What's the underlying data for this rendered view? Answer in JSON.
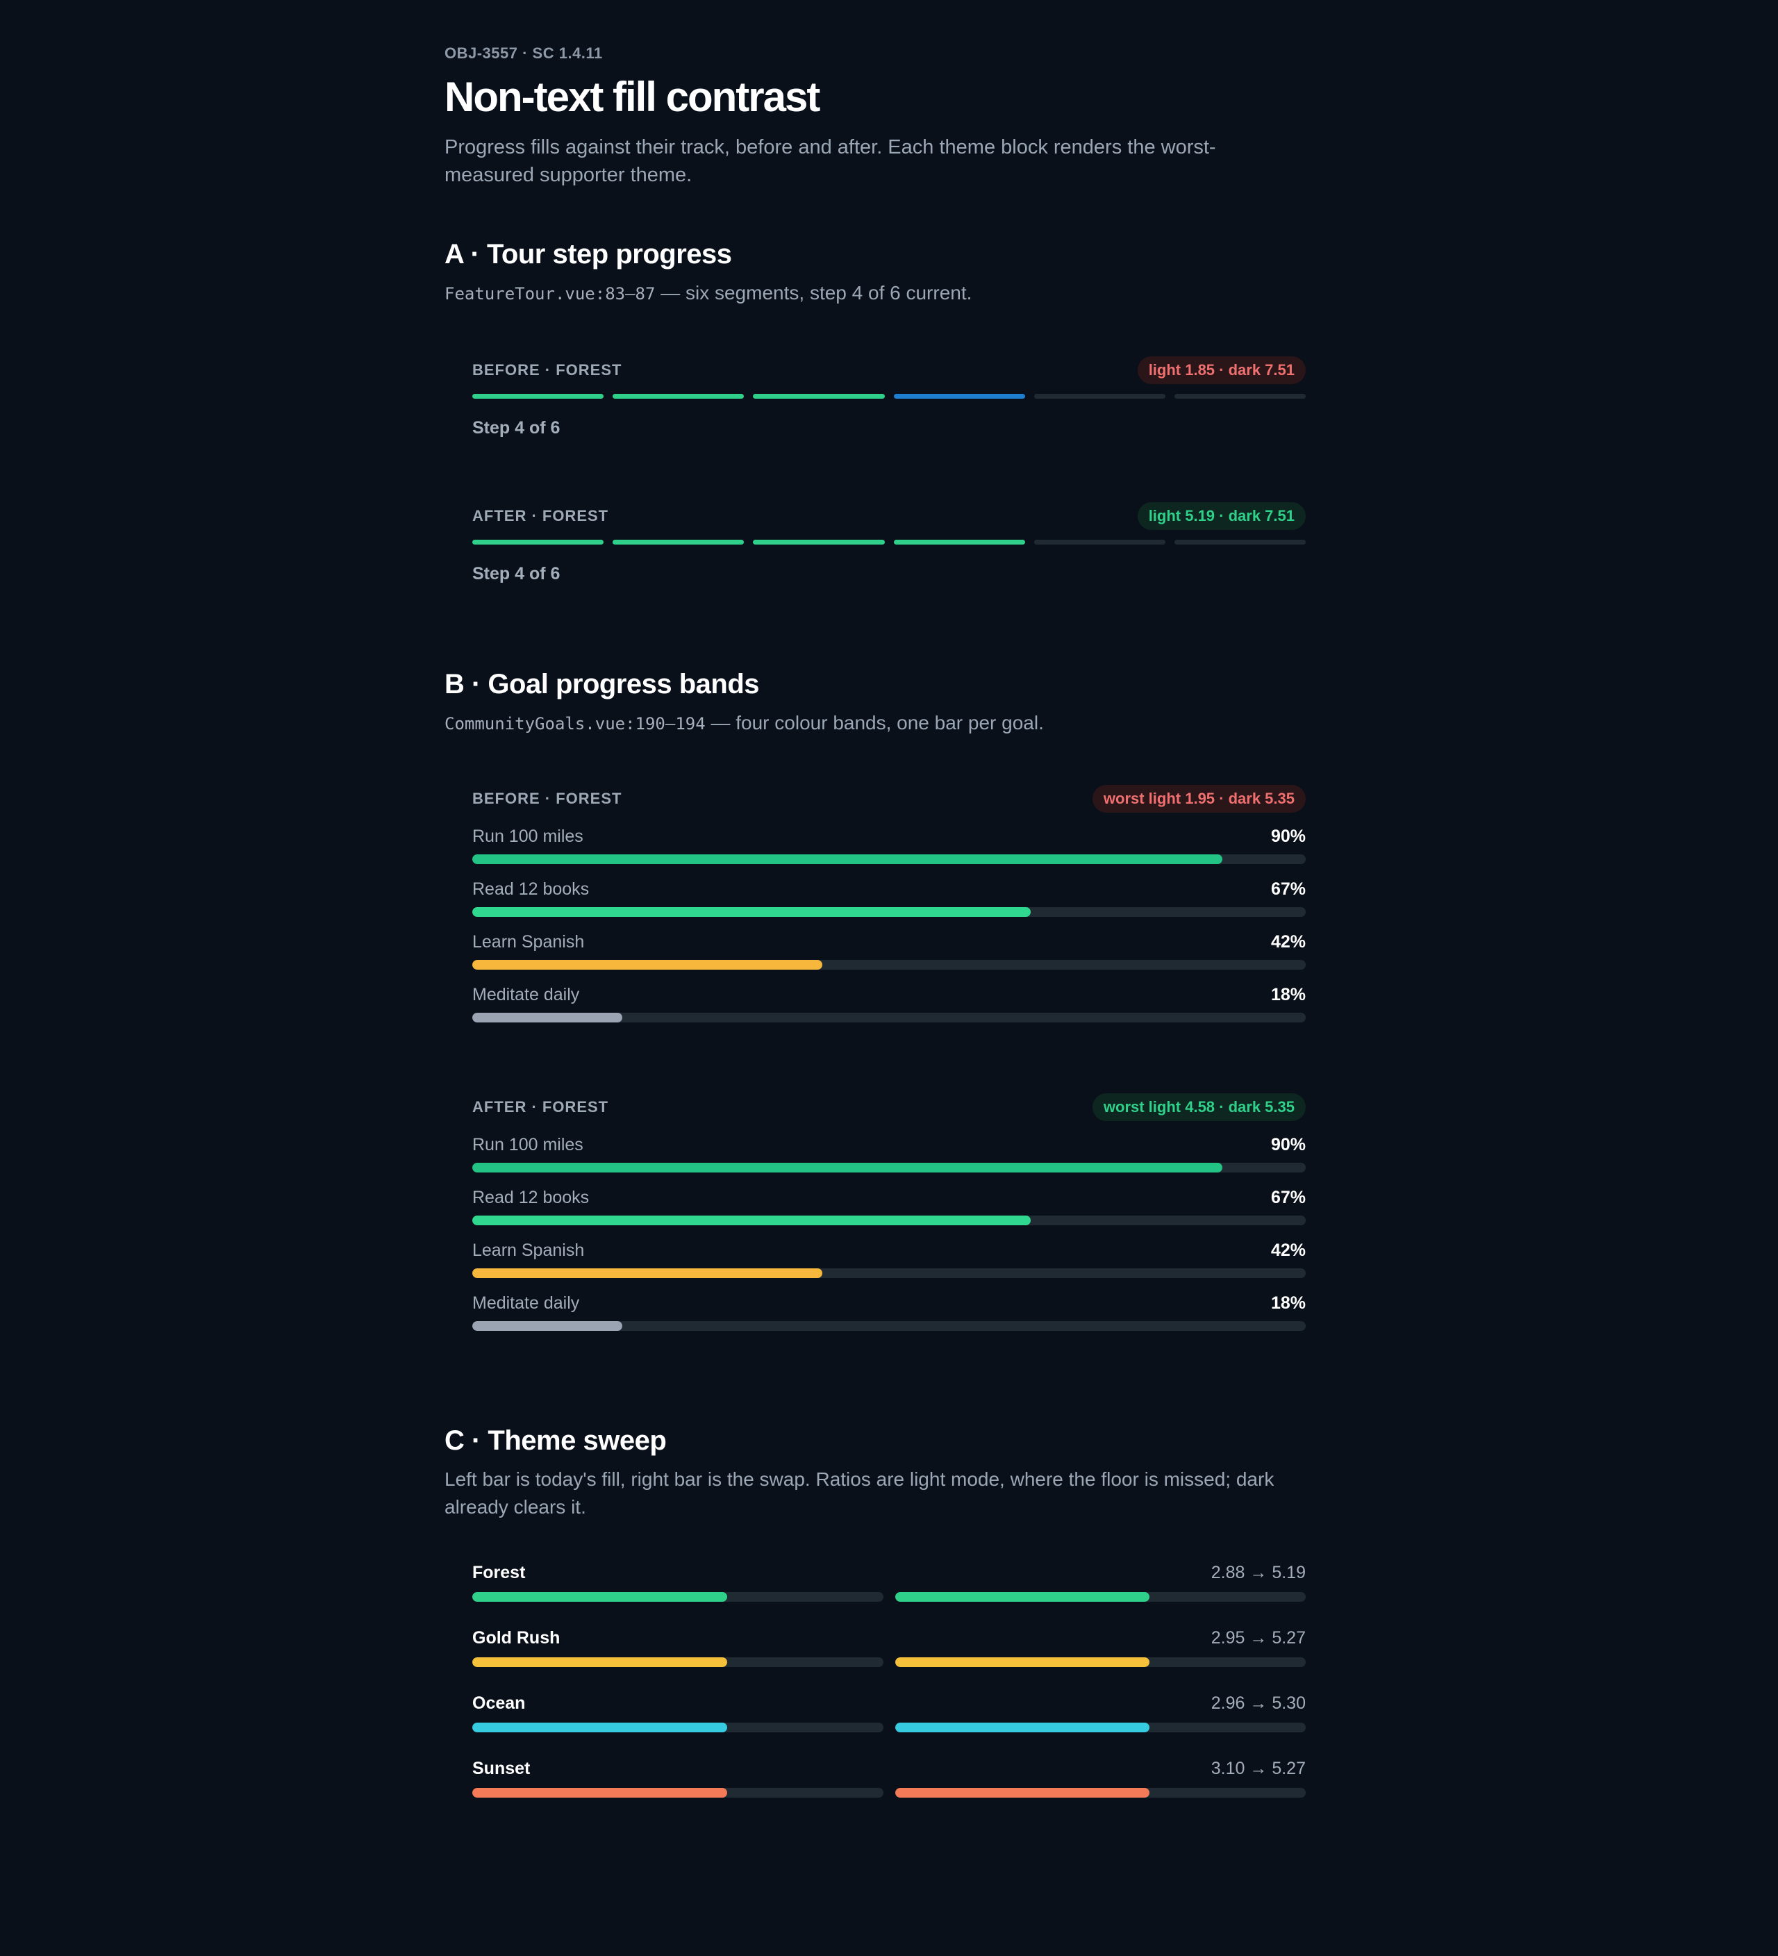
{
  "header": {
    "kicker": "OBJ-3557 · SC 1.4.11",
    "title": "Non-text fill contrast",
    "lede": "Progress fills against their track, before and after. Each theme block renders the worst-measured supporter theme."
  },
  "sectionA": {
    "title": "A · Tour step progress",
    "code": "FeatureTour.vue:83–87",
    "subtitle": " — six segments, step 4 of 6 current.",
    "before": {
      "label": "BEFORE · FOREST",
      "pill": "light 1.85 · dark 7.51",
      "step_label": "Step 4 of 6",
      "segments": [
        "#2fd08a",
        "#2fd08a",
        "#2fd08a",
        "#1e7fd0",
        "#1f2a33",
        "#1f2a33"
      ]
    },
    "after": {
      "label": "AFTER · FOREST",
      "pill": "light 5.19 · dark 7.51",
      "step_label": "Step 4 of 6",
      "segments": [
        "#2fd08a",
        "#2fd08a",
        "#2fd08a",
        "#2fd08a",
        "#1f2a33",
        "#1f2a33"
      ]
    }
  },
  "sectionB": {
    "title": "B · Goal progress bands",
    "code": "CommunityGoals.vue:190–194",
    "subtitle": " — four colour bands, one bar per goal.",
    "before": {
      "label": "BEFORE · FOREST",
      "pill": "worst light 1.95 · dark 5.35",
      "goals": [
        {
          "name": "Run 100 miles",
          "pct_label": "90%",
          "value": 90,
          "color": "#22c384"
        },
        {
          "name": "Read 12 books",
          "pct_label": "67%",
          "value": 67,
          "color": "#2fd88e"
        },
        {
          "name": "Learn Spanish",
          "pct_label": "42%",
          "value": 42,
          "color": "#f6b73c"
        },
        {
          "name": "Meditate daily",
          "pct_label": "18%",
          "value": 18,
          "color": "#9aa4b2"
        }
      ]
    },
    "after": {
      "label": "AFTER · FOREST",
      "pill": "worst light 4.58 · dark 5.35",
      "goals": [
        {
          "name": "Run 100 miles",
          "pct_label": "90%",
          "value": 90,
          "color": "#22c384"
        },
        {
          "name": "Read 12 books",
          "pct_label": "67%",
          "value": 67,
          "color": "#2fd88e"
        },
        {
          "name": "Learn Spanish",
          "pct_label": "42%",
          "value": 42,
          "color": "#f6b73c"
        },
        {
          "name": "Meditate daily",
          "pct_label": "18%",
          "value": 18,
          "color": "#9aa4b2"
        }
      ]
    }
  },
  "sectionC": {
    "title": "C · Theme sweep",
    "subtitle": "Left bar is today's fill, right bar is the swap. Ratios are light mode, where the floor is missed; dark already clears it.",
    "themes": [
      {
        "name": "Forest",
        "ratio": "2.88 → 5.19",
        "before_value": 62,
        "after_value": 62,
        "color": "#2fd08a"
      },
      {
        "name": "Gold Rush",
        "ratio": "2.95 → 5.27",
        "before_value": 62,
        "after_value": 62,
        "color": "#f5c03a"
      },
      {
        "name": "Ocean",
        "ratio": "2.96 → 5.30",
        "before_value": 62,
        "after_value": 62,
        "color": "#36cbe0"
      },
      {
        "name": "Sunset",
        "ratio": "3.10 → 5.27",
        "before_value": 62,
        "after_value": 62,
        "color": "#f47a58"
      }
    ]
  }
}
